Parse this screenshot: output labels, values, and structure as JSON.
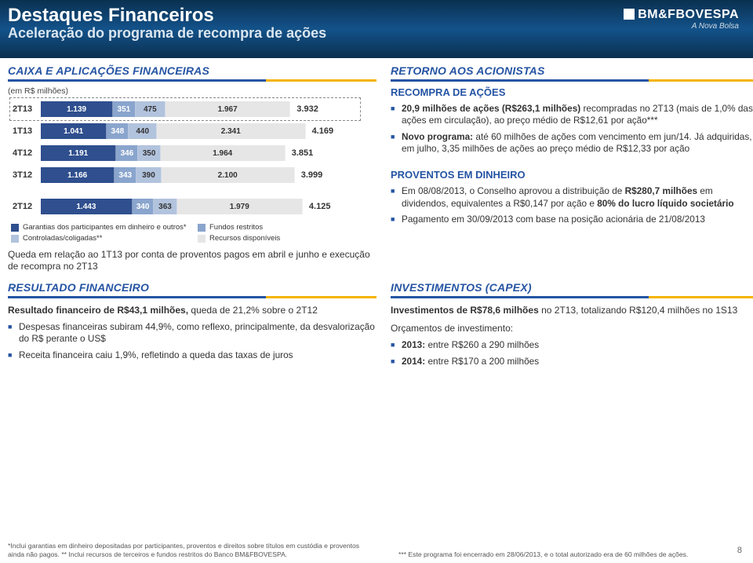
{
  "header": {
    "title": "Destaques Financeiros",
    "subtitle": "Aceleração do programa de recompra de ações",
    "logo_main": "BM&FBOVESPA",
    "logo_sub": "A Nova Bolsa"
  },
  "page_no": "8",
  "colors": {
    "c1": "#2f4f8e",
    "c2": "#8aa5cd",
    "c3": "#b2c3dd",
    "c4": "#e6e6e6",
    "blue": "#2554a3"
  },
  "left1": {
    "heading": "CAIXA E APLICAÇÕES FINANCEIRAS",
    "unit": "(em R$ milhões)",
    "max": 4200,
    "rows": [
      {
        "label": "2T13",
        "boxed": true,
        "segs": [
          "1.139",
          "351",
          "475",
          "1.967"
        ],
        "vals": [
          1139,
          351,
          475,
          1967
        ],
        "total": "3.932"
      },
      {
        "label": "1T13",
        "boxed": false,
        "segs": [
          "1.041",
          "348",
          "440",
          "2.341"
        ],
        "vals": [
          1041,
          348,
          440,
          2341
        ],
        "total": "4.169"
      },
      {
        "label": "4T12",
        "boxed": false,
        "segs": [
          "1.191",
          "346",
          "350",
          "1.964"
        ],
        "vals": [
          1191,
          346,
          350,
          1964
        ],
        "total": "3.851"
      },
      {
        "label": "3T12",
        "boxed": false,
        "segs": [
          "1.166",
          "343",
          "390",
          "2.100"
        ],
        "vals": [
          1166,
          343,
          390,
          2100
        ],
        "total": "3.999"
      },
      {
        "label": "2T12",
        "boxed": false,
        "segs": [
          "1.443",
          "340",
          "363",
          "1.979"
        ],
        "vals": [
          1443,
          340,
          363,
          1979
        ],
        "total": "4.125"
      }
    ],
    "legend": [
      "Garantias dos participantes em dinheiro e outros*",
      "Fundos restritos",
      "Controladas/coligadas**",
      "Recursos disponíveis"
    ],
    "note": "Queda em relação ao 1T13 por conta de proventos pagos em abril e junho e execução de recompra no 2T13"
  },
  "right1": {
    "heading": "RETORNO AOS ACIONISTAS",
    "sub1": "RECOMPRA DE AÇÕES",
    "b1": [
      "20,9 milhões de ações (R$263,1 milhões) recompradas no 2T13 (mais de 1,0% das ações em circulação), ao preço médio de R$12,61 por ação***",
      "Novo programa: até 60 milhões de ações com vencimento em jun/14. Já adquiridas, em julho, 3,35 milhões de ações ao preço médio de R$12,33 por ação"
    ],
    "sub2": "PROVENTOS EM DINHEIRO",
    "b2": [
      "Em 08/08/2013, o Conselho aprovou a distribuição de R$280,7 milhões em dividendos, equivalentes a R$0,147 por ação e 80% do lucro líquido societário",
      "Pagamento em 30/09/2013 com base na posição acionária de 21/08/2013"
    ]
  },
  "left2": {
    "heading": "RESULTADO FINANCEIRO",
    "lead": "Resultado financeiro de R$43,1 milhões, queda de 21,2% sobre o 2T12",
    "bul": [
      "Despesas financeiras subiram 44,9%, como reflexo, principalmente, da desvalorização do R$ perante o US$",
      "Receita financeira caiu 1,9%, refletindo a queda das taxas de juros"
    ]
  },
  "right2": {
    "heading": "INVESTIMENTOS (CAPEX)",
    "lead": "Investimentos de R$78,6 milhões no 2T13, totalizando R$120,4 milhões no 1S13",
    "lead2": "Orçamentos de investimento:",
    "bul": [
      "2013: entre R$260 a 290 milhões",
      "2014: entre R$170 a 200 milhões"
    ]
  },
  "foot_left": "*Inclui garantias em dinheiro depositadas por participantes, proventos e direitos sobre títulos em custódia e proventos ainda não pagos. ** Inclui recursos de terceiros e fundos restritos do Banco BM&FBOVESPA.",
  "foot_right": "*** Este programa foi encerrado em 28/06/2013, e o total autorizado era de 60 milhões de ações."
}
